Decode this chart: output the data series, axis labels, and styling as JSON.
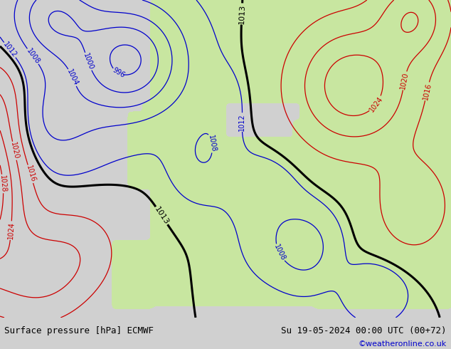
{
  "title_left": "Surface pressure [hPa] ECMWF",
  "title_right": "Su 19-05-2024 00:00 UTC (00+72)",
  "watermark": "©weatheronline.co.uk",
  "bg_color_land": "#c8e6a0",
  "bg_color_sea": "#d8d8d8",
  "bg_color_bottom": "#d0d0d0",
  "contour_color_low": "#0000cc",
  "contour_color_high": "#cc0000",
  "contour_color_bold": "#000000",
  "watermark_color": "#0000cc"
}
